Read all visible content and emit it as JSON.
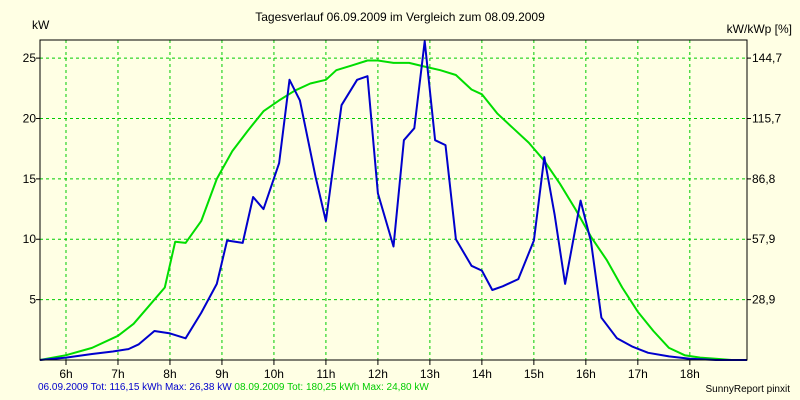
{
  "chart_data": {
    "type": "line",
    "title": "Tagesverlauf 06.09.2009 im Vergleich zum 08.09.2009",
    "y_left_unit": "kW",
    "y_right_unit": "kW/kWp [%]",
    "ylim": [
      0,
      26.5
    ],
    "y_ticks": [
      5,
      10,
      15,
      20,
      25
    ],
    "y_right_ticks": [
      {
        "value": 5,
        "label": "28,9"
      },
      {
        "value": 10,
        "label": "57,9"
      },
      {
        "value": 15,
        "label": "86,8"
      },
      {
        "value": 20,
        "label": "115,7"
      },
      {
        "value": 25,
        "label": "144,7"
      }
    ],
    "xlim": [
      5.5,
      19.1
    ],
    "x_ticks": [
      {
        "value": 6,
        "label": "6h"
      },
      {
        "value": 7,
        "label": "7h"
      },
      {
        "value": 8,
        "label": "8h"
      },
      {
        "value": 9,
        "label": "9h"
      },
      {
        "value": 10,
        "label": "10h"
      },
      {
        "value": 11,
        "label": "11h"
      },
      {
        "value": 12,
        "label": "12h"
      },
      {
        "value": 13,
        "label": "13h"
      },
      {
        "value": 14,
        "label": "14h"
      },
      {
        "value": 15,
        "label": "15h"
      },
      {
        "value": 16,
        "label": "16h"
      },
      {
        "value": 17,
        "label": "17h"
      },
      {
        "value": 18,
        "label": "18h"
      }
    ],
    "grid": true,
    "series": [
      {
        "name": "06.09.2009",
        "color": "#0000CC",
        "x": [
          5.5,
          6.0,
          6.5,
          6.9,
          7.2,
          7.4,
          7.7,
          8.0,
          8.3,
          8.6,
          8.9,
          9.1,
          9.4,
          9.6,
          9.8,
          10.1,
          10.3,
          10.5,
          10.8,
          11.0,
          11.3,
          11.6,
          11.8,
          12.0,
          12.3,
          12.5,
          12.7,
          12.9,
          13.1,
          13.3,
          13.5,
          13.8,
          14.0,
          14.2,
          14.4,
          14.7,
          15.0,
          15.2,
          15.4,
          15.6,
          15.9,
          16.1,
          16.3,
          16.6,
          16.9,
          17.2,
          17.6,
          18.0,
          18.5,
          18.8,
          19.1
        ],
        "y": [
          0.0,
          0.2,
          0.5,
          0.7,
          0.9,
          1.3,
          2.4,
          2.2,
          1.8,
          3.9,
          6.3,
          9.9,
          9.7,
          13.5,
          12.5,
          16.3,
          23.2,
          21.5,
          15.2,
          11.5,
          21.1,
          23.2,
          23.5,
          13.8,
          9.4,
          18.2,
          19.2,
          26.4,
          18.2,
          17.8,
          10.0,
          7.8,
          7.4,
          5.8,
          6.1,
          6.7,
          9.9,
          16.8,
          12.0,
          6.3,
          13.2,
          9.8,
          3.5,
          1.8,
          1.1,
          0.6,
          0.3,
          0.1,
          0.0,
          0.0,
          0.0
        ]
      },
      {
        "name": "08.09.2009",
        "color": "#00DD00",
        "x": [
          5.5,
          6.0,
          6.5,
          7.0,
          7.3,
          7.6,
          7.9,
          8.1,
          8.3,
          8.6,
          8.9,
          9.2,
          9.5,
          9.8,
          10.1,
          10.4,
          10.7,
          11.0,
          11.2,
          11.5,
          11.8,
          12.0,
          12.3,
          12.6,
          12.9,
          13.2,
          13.5,
          13.8,
          14.0,
          14.3,
          14.6,
          14.9,
          15.2,
          15.5,
          15.8,
          16.1,
          16.4,
          16.7,
          17.0,
          17.3,
          17.6,
          17.9,
          18.2,
          18.5,
          18.8,
          19.1
        ],
        "y": [
          0.0,
          0.4,
          1.0,
          2.0,
          3.0,
          4.5,
          6.0,
          9.8,
          9.7,
          11.5,
          15.0,
          17.3,
          19.0,
          20.6,
          21.5,
          22.3,
          22.9,
          23.2,
          24.0,
          24.4,
          24.8,
          24.8,
          24.6,
          24.6,
          24.3,
          24.0,
          23.6,
          22.4,
          22.0,
          20.4,
          19.2,
          18.0,
          16.5,
          14.6,
          12.5,
          10.2,
          8.3,
          6.0,
          4.0,
          2.4,
          1.0,
          0.4,
          0.2,
          0.1,
          0.0,
          0.0
        ]
      }
    ]
  },
  "footer": {
    "series1_info": "06.09.2009 Tot: 116,15 kWh Max: 26,38 kW",
    "series2_info": "08.09.2009 Tot: 180,25 kWh Max: 24,80 kW",
    "credit": "SunnyReport pinxit"
  }
}
